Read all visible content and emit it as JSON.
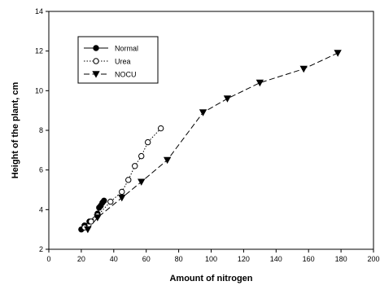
{
  "chart_data": {
    "type": "line",
    "title": "",
    "xlabel": "Amount of nitrogen",
    "ylabel": "Height of the plant, cm",
    "xlim": [
      0,
      200
    ],
    "ylim": [
      2,
      14
    ],
    "xticks": [
      0,
      20,
      40,
      60,
      80,
      100,
      120,
      140,
      160,
      180,
      200
    ],
    "yticks": [
      2,
      4,
      6,
      8,
      10,
      12,
      14
    ],
    "grid": false,
    "legend_position": "top-left",
    "series": [
      {
        "name": "Normal",
        "marker": "filled-circle",
        "line_style": "solid",
        "color": "#000000",
        "x": [
          20,
          22,
          25,
          30,
          31,
          32,
          33,
          34
        ],
        "y": [
          3.0,
          3.2,
          3.4,
          3.8,
          4.1,
          4.2,
          4.35,
          4.45
        ]
      },
      {
        "name": "Urea",
        "marker": "open-circle",
        "line_style": "dotted",
        "color": "#000000",
        "x": [
          22,
          26,
          30,
          38,
          45,
          49,
          53,
          57,
          61,
          69
        ],
        "y": [
          3.1,
          3.4,
          3.7,
          4.4,
          4.9,
          5.5,
          6.2,
          6.7,
          7.4,
          8.1
        ]
      },
      {
        "name": "NOCU",
        "marker": "filled-triangle-down",
        "line_style": "dashed",
        "color": "#000000",
        "x": [
          24,
          30,
          45,
          57,
          73,
          95,
          110,
          130,
          157,
          178
        ],
        "y": [
          3.0,
          3.6,
          4.6,
          5.4,
          6.5,
          8.9,
          9.6,
          10.4,
          11.1,
          11.9
        ]
      }
    ]
  }
}
